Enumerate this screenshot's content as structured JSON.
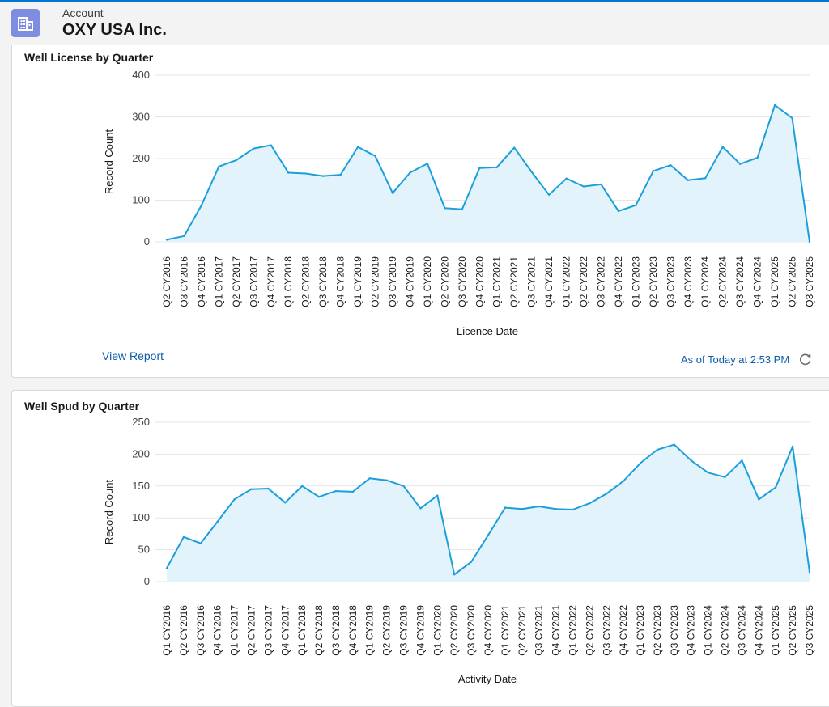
{
  "header": {
    "object_label": "Account",
    "account_name": "OXY USA Inc."
  },
  "colors": {
    "accent": "#0176d3",
    "line": "#1b9fdb",
    "area": "#e3f3fc",
    "icon_bg": "#7f8de1",
    "link": "#0b5cab"
  },
  "icons": {
    "account": "building-icon",
    "refresh": "refresh-icon"
  },
  "card1": {
    "title": "Well License by Quarter",
    "view_report_label": "View Report",
    "as_of_label": "As of Today at 2:53 PM"
  },
  "card2": {
    "title": "Well Spud by Quarter"
  },
  "chart_data": [
    {
      "type": "area",
      "title": "Well License by Quarter",
      "xlabel": "Licence Date",
      "ylabel": "Record Count",
      "ylim": [
        0,
        400
      ],
      "yticks": [
        0,
        100,
        200,
        300,
        400
      ],
      "grid": true,
      "categories": [
        "Q2 CY2016",
        "Q3 CY2016",
        "Q4 CY2016",
        "Q1 CY2017",
        "Q2 CY2017",
        "Q3 CY2017",
        "Q4 CY2017",
        "Q1 CY2018",
        "Q2 CY2018",
        "Q3 CY2018",
        "Q4 CY2018",
        "Q1 CY2019",
        "Q2 CY2019",
        "Q3 CY2019",
        "Q4 CY2019",
        "Q1 CY2020",
        "Q2 CY2020",
        "Q3 CY2020",
        "Q4 CY2020",
        "Q1 CY2021",
        "Q2 CY2021",
        "Q3 CY2021",
        "Q4 CY2021",
        "Q1 CY2022",
        "Q2 CY2022",
        "Q3 CY2022",
        "Q4 CY2022",
        "Q1 CY2023",
        "Q2 CY2023",
        "Q3 CY2023",
        "Q4 CY2023",
        "Q1 CY2024",
        "Q2 CY2024",
        "Q3 CY2024",
        "Q4 CY2024",
        "Q1 CY2025",
        "Q2 CY2025",
        "Q3 CY2025"
      ],
      "values": [
        5,
        14,
        88,
        181,
        196,
        224,
        232,
        166,
        164,
        158,
        161,
        228,
        206,
        117,
        166,
        188,
        81,
        78,
        177,
        179,
        226,
        168,
        113,
        152,
        133,
        138,
        74,
        88,
        170,
        184,
        148,
        153,
        228,
        187,
        202,
        328,
        297,
        0
      ]
    },
    {
      "type": "area",
      "title": "Well Spud by Quarter",
      "xlabel": "Activity Date",
      "ylabel": "Record Count",
      "ylim": [
        0,
        250
      ],
      "yticks": [
        0,
        50,
        100,
        150,
        200,
        250
      ],
      "grid": true,
      "categories": [
        "Q1 CY2016",
        "Q2 CY2016",
        "Q3 CY2016",
        "Q4 CY2016",
        "Q1 CY2017",
        "Q2 CY2017",
        "Q3 CY2017",
        "Q4 CY2017",
        "Q1 CY2018",
        "Q2 CY2018",
        "Q3 CY2018",
        "Q4 CY2018",
        "Q1 CY2019",
        "Q2 CY2019",
        "Q3 CY2019",
        "Q4 CY2019",
        "Q1 CY2020",
        "Q2 CY2020",
        "Q3 CY2020",
        "Q4 CY2020",
        "Q1 CY2021",
        "Q2 CY2021",
        "Q3 CY2021",
        "Q4 CY2021",
        "Q1 CY2022",
        "Q2 CY2022",
        "Q3 CY2022",
        "Q4 CY2022",
        "Q1 CY2023",
        "Q2 CY2023",
        "Q3 CY2023",
        "Q4 CY2023",
        "Q1 CY2024",
        "Q2 CY2024",
        "Q3 CY2024",
        "Q4 CY2024",
        "Q1 CY2025",
        "Q2 CY2025",
        "Q3 CY2025"
      ],
      "values": [
        21,
        70,
        60,
        94,
        129,
        145,
        146,
        124,
        150,
        133,
        142,
        141,
        162,
        159,
        150,
        115,
        135,
        11,
        31,
        73,
        116,
        114,
        118,
        114,
        113,
        123,
        138,
        158,
        186,
        207,
        215,
        190,
        171,
        164,
        190,
        129,
        148,
        212,
        15
      ]
    }
  ]
}
